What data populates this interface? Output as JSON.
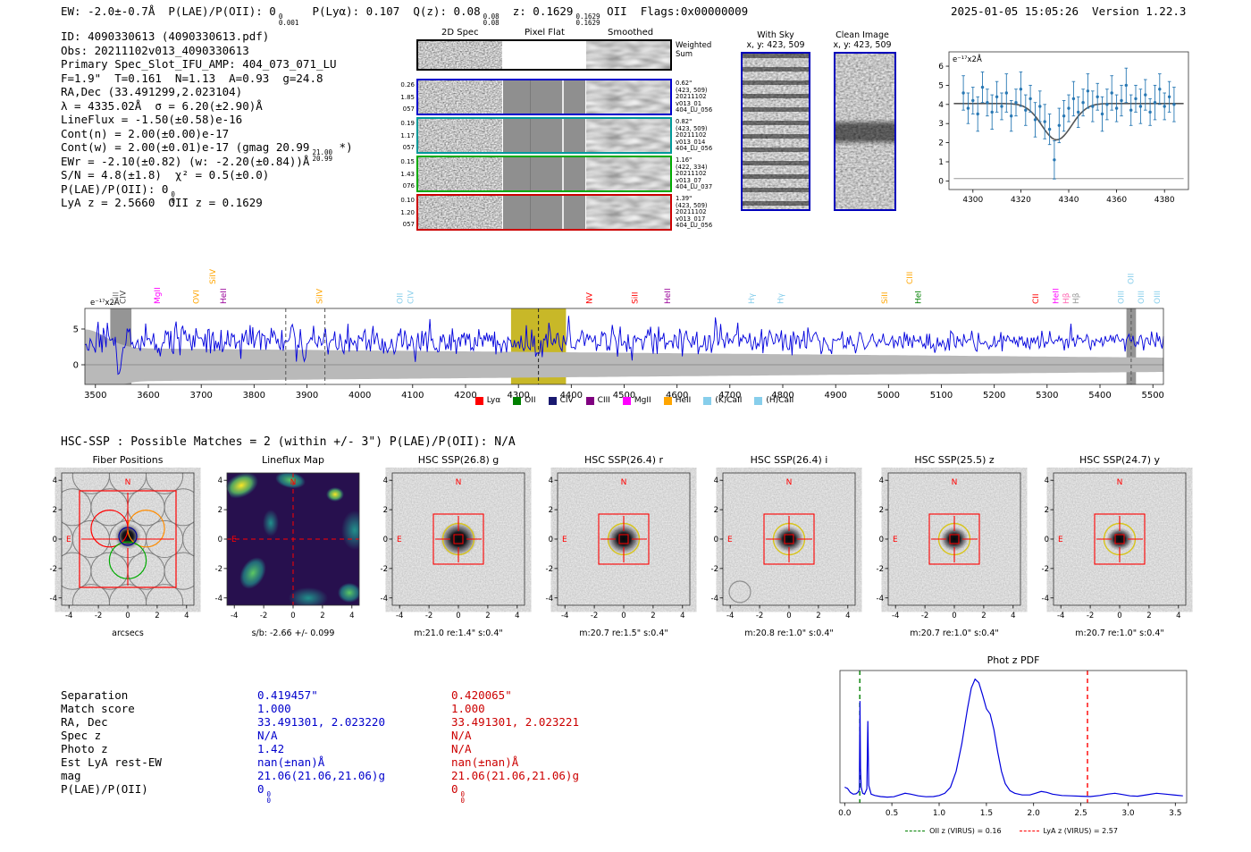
{
  "header": {
    "segments": [
      {
        "t": "EW: -2.0±-0.7Å  P(LAE)/P(OII): 0"
      },
      {
        "sup": "0",
        "sub": "0.001"
      },
      {
        "t": "  P(Lyα): 0.107  Q(z): 0.08"
      },
      {
        "sup": "0.08",
        "sub": "0.08"
      },
      {
        "t": "  z: 0.1629"
      },
      {
        "sup": "0.1629",
        "sub": "0.1629"
      },
      {
        "t": " OII  Flags:0x00000009"
      }
    ],
    "right": "2025-01-05 15:05:26  Version 1.22.3"
  },
  "info": {
    "lines": [
      [
        {
          "t": "ID: 4090330613 (4090330613.pdf)"
        }
      ],
      [
        {
          "t": "Obs: 20211102v013_4090330613"
        }
      ],
      [
        {
          "t": "Primary Spec_Slot_IFU_AMP: 404_073_071_LU"
        }
      ],
      [
        {
          "t": "F=1.9\"  T=0.161  N=1.13  A=0.93  g=24.8"
        }
      ],
      [
        {
          "t": "RA,Dec (33.491299,2.023104)"
        }
      ],
      [
        {
          "t": "λ = 4335.02Å  σ = 6.20(±2.90)Å"
        }
      ],
      [
        {
          "t": "LineFlux = -1.50(±0.58)e-16"
        }
      ],
      [
        {
          "t": "Cont(n) = 2.00(±0.00)e-17"
        }
      ],
      [
        {
          "t": "Cont(w) = 2.00(±0.01)e-17 (gmag 20.99"
        },
        {
          "sup": "21.00",
          "sub": "20.99"
        },
        {
          "t": " *)"
        }
      ],
      [
        {
          "t": "EWr = -2.10(±0.82) (w: -2.20(±0.84))Å"
        }
      ],
      [
        {
          "t": "S/N = 4.8(±1.8)  χ² = 0.5(±0.0)"
        }
      ],
      [
        {
          "t": "P(LAE)/P(OII): 0"
        },
        {
          "sup": "0",
          "sub": "0"
        }
      ],
      [
        {
          "t": "LyA z = 2.5660  OII z = 0.1629"
        }
      ]
    ]
  },
  "spec2d": {
    "col_titles": [
      "2D Spec",
      "Pixel Flat",
      "Smoothed"
    ],
    "rows": [
      {
        "border": "#000000",
        "left": [],
        "right": [
          "Weighted",
          "Sum"
        ]
      },
      {
        "border": "#0000cc",
        "left": [
          "0.26",
          "1.85",
          "057"
        ],
        "right": [
          "0.62\"",
          "(423, 509)",
          "20211102",
          "v013_01",
          "404_LU_056"
        ]
      },
      {
        "border": "#009999",
        "left": [
          "0.19",
          "1.17",
          "057"
        ],
        "right": [
          "0.82\"",
          "(423, 509)",
          "20211102",
          "v013_014",
          "404_LU_056"
        ]
      },
      {
        "border": "#00aa00",
        "left": [
          "0.15",
          "1.43",
          "076"
        ],
        "right": [
          "1.16\"",
          "(422, 334)",
          "20211102",
          "v013_07",
          "404_LU_037"
        ]
      },
      {
        "border": "#cc0000",
        "left": [
          "0.10",
          "1.20",
          "057"
        ],
        "right": [
          "1.39\"",
          "(423, 509)",
          "20211102",
          "v013_017",
          "404_LU_056"
        ]
      }
    ]
  },
  "sky_panels": {
    "with_sky": {
      "title": "With Sky",
      "coords": "x, y: 423, 509"
    },
    "clean": {
      "title": "Clean Image",
      "coords": "x, y: 423, 509"
    }
  },
  "matches_header": "HSC-SSP : Possible Matches = 2 (within +/- 3\")  P(LAE)/P(OII): N/A",
  "cutouts": {
    "tick_values": [
      -4,
      -2,
      0,
      2,
      4
    ],
    "compass": {
      "north": "N",
      "east": "E"
    },
    "panels": [
      {
        "title": "Fiber Positions",
        "caption": "arcsecs",
        "type": "fiber"
      },
      {
        "title": "Lineflux Map",
        "caption": "s/b: -2.66 +/- 0.099",
        "type": "lineflux"
      },
      {
        "title": "HSC SSP(26.8) g",
        "caption": "m:21.0 re:1.4\" s:0.4\"",
        "type": "image",
        "blob_r": 21
      },
      {
        "title": "HSC SSP(26.4) r",
        "caption": "m:20.7 re:1.5\" s:0.4\"",
        "type": "image",
        "blob_r": 19
      },
      {
        "title": "HSC SSP(26.4) i",
        "caption": "m:20.8 re:1.0\" s:0.4\"",
        "type": "image",
        "blob_r": 17,
        "extra_source": true
      },
      {
        "title": "HSC SSP(25.5) z",
        "caption": "m:20.7 re:1.0\" s:0.4\"",
        "type": "image",
        "blob_r": 16
      },
      {
        "title": "HSC SSP(24.7) y",
        "caption": "m:20.7 re:1.0\" s:0.4\"",
        "type": "image",
        "blob_r": 15
      }
    ]
  },
  "match_table": {
    "blue_color": "#0000cc",
    "red_color": "#cc0000",
    "rows": [
      {
        "label": "Separation",
        "blue": [
          {
            "t": "0.419457\""
          }
        ],
        "red": [
          {
            "t": "0.420065\""
          }
        ]
      },
      {
        "label": "Match score",
        "blue": [
          {
            "t": "1.000"
          }
        ],
        "red": [
          {
            "t": "1.000"
          }
        ]
      },
      {
        "label": "RA, Dec",
        "blue": [
          {
            "t": "33.491301, 2.023220"
          }
        ],
        "red": [
          {
            "t": "33.491301, 2.023221"
          }
        ]
      },
      {
        "label": "Spec z",
        "blue": [
          {
            "t": "N/A"
          }
        ],
        "red": [
          {
            "t": "N/A"
          }
        ]
      },
      {
        "label": "Photo z",
        "blue": [
          {
            "t": "1.42"
          }
        ],
        "red": [
          {
            "t": "N/A"
          }
        ]
      },
      {
        "label": "Est LyA rest-EW",
        "blue": [
          {
            "t": "nan(±nan)Å"
          }
        ],
        "red": [
          {
            "t": "nan(±nan)Å"
          }
        ]
      },
      {
        "label": "mag",
        "blue": [
          {
            "t": "21.06(21.06,21.06)g"
          }
        ],
        "red": [
          {
            "t": "21.06(21.06,21.06)g"
          }
        ]
      },
      {
        "label": "P(LAE)/P(OII)",
        "blue": [
          {
            "t": "0"
          },
          {
            "sup": "0",
            "sub": "0"
          }
        ],
        "red": [
          {
            "t": "0"
          },
          {
            "sup": "0",
            "sub": "0"
          }
        ]
      }
    ]
  },
  "chart_data": [
    {
      "name": "line_fit_inset",
      "type": "scatter",
      "note": "e⁻¹⁷x2Å",
      "xlim": [
        4290,
        4390
      ],
      "ylim": [
        -0.45,
        6.75
      ],
      "xticks": [
        4300,
        4320,
        4340,
        4360,
        4380
      ],
      "yticks": [
        0,
        1,
        2,
        3,
        4,
        5,
        6
      ],
      "point_color": "#2878b4",
      "fit_color": "#555555",
      "zero_line_y": 0.12,
      "fit": {
        "continuum": 4.05,
        "center": 4335,
        "sigma": 6.2,
        "depth": 1.9
      },
      "points": [
        [
          4296,
          4.6,
          0.9
        ],
        [
          4298,
          3.8,
          0.8
        ],
        [
          4300,
          4.2,
          0.7
        ],
        [
          4302,
          3.5,
          0.9
        ],
        [
          4304,
          4.9,
          0.8
        ],
        [
          4306,
          4.1,
          0.7
        ],
        [
          4308,
          3.6,
          0.9
        ],
        [
          4310,
          4.4,
          0.8
        ],
        [
          4312,
          3.9,
          0.7
        ],
        [
          4314,
          4.6,
          1.0
        ],
        [
          4316,
          3.4,
          0.8
        ],
        [
          4318,
          4.1,
          0.7
        ],
        [
          4320,
          4.8,
          0.9
        ],
        [
          4322,
          3.7,
          0.8
        ],
        [
          4324,
          4.3,
          0.7
        ],
        [
          4326,
          3.2,
          0.9
        ],
        [
          4328,
          3.9,
          0.8
        ],
        [
          4330,
          3.1,
          0.9
        ],
        [
          4332,
          2.7,
          0.8
        ],
        [
          4334,
          1.1,
          1.0
        ],
        [
          4336,
          2.9,
          0.9
        ],
        [
          4338,
          3.4,
          0.8
        ],
        [
          4340,
          3.8,
          0.7
        ],
        [
          4342,
          4.3,
          0.9
        ],
        [
          4344,
          3.6,
          0.8
        ],
        [
          4346,
          4.1,
          0.7
        ],
        [
          4348,
          4.7,
          0.9
        ],
        [
          4350,
          3.9,
          0.8
        ],
        [
          4352,
          4.4,
          0.7
        ],
        [
          4354,
          3.5,
          0.9
        ],
        [
          4356,
          4.0,
          0.8
        ],
        [
          4358,
          4.6,
          0.9
        ],
        [
          4360,
          3.8,
          0.7
        ],
        [
          4362,
          4.2,
          0.8
        ],
        [
          4364,
          5.0,
          0.9
        ],
        [
          4366,
          3.7,
          0.8
        ],
        [
          4368,
          4.3,
          0.7
        ],
        [
          4370,
          3.9,
          0.9
        ],
        [
          4372,
          4.5,
          0.8
        ],
        [
          4374,
          3.6,
          0.7
        ],
        [
          4376,
          4.1,
          0.9
        ],
        [
          4378,
          4.8,
          0.8
        ],
        [
          4380,
          3.9,
          0.7
        ],
        [
          4382,
          4.4,
          0.8
        ],
        [
          4384,
          4.0,
          0.9
        ]
      ]
    },
    {
      "name": "full_spectrum",
      "type": "line",
      "note": "e⁻¹⁷x2Å",
      "xlim": [
        3480,
        5520
      ],
      "xticks": [
        3500,
        3600,
        3700,
        3800,
        3900,
        4000,
        4100,
        4200,
        4300,
        4400,
        4500,
        4600,
        4700,
        4800,
        4900,
        5000,
        5100,
        5200,
        5300,
        5400,
        5500
      ],
      "yticks": [
        0,
        5
      ],
      "line_color": "#0000dd",
      "noise_model": {
        "baseline": 3.3,
        "amp_blue": 1.55,
        "amp_red": 0.8,
        "seed": 7,
        "absorption": {
          "center": 4336,
          "sigma": 6.2,
          "depth": 1.6
        },
        "deep_dips": [
          {
            "center": 3547,
            "sigma": 7,
            "depth": 7.2
          },
          {
            "center": 3622,
            "sigma": 5,
            "depth": 3.3
          }
        ]
      },
      "error_band": {
        "halfwidth_blue": 2.35,
        "halfwidth_red": 1.0,
        "edge_extra": 2.6
      },
      "highlight_band": {
        "x0": 4286,
        "x1": 4390,
        "color": "#c5b41c"
      },
      "gray_bands": [
        {
          "x0": 3528,
          "x1": 3568
        },
        {
          "x0": 5450,
          "x1": 5468
        }
      ],
      "dashed_lines": [
        {
          "x": 3860,
          "color": "#555555"
        },
        {
          "x": 3934,
          "color": "#555555"
        },
        {
          "x": 4338,
          "color": "#222222"
        },
        {
          "x": 5459,
          "color": "#555555"
        }
      ],
      "line_labels": [
        {
          "wl": 3538,
          "text": "SiII",
          "color": "#777777"
        },
        {
          "wl": 3552,
          "text": "CIV",
          "color": "#444444"
        },
        {
          "wl": 3617,
          "text": "MgII",
          "color": "#ff00ff"
        },
        {
          "wl": 3690,
          "text": "OVI",
          "color": "#ffa500"
        },
        {
          "wl": 3722,
          "text": "SiIV",
          "color": "#ffa500",
          "raise": 22
        },
        {
          "wl": 3742,
          "text": "HeII",
          "color": "#990099"
        },
        {
          "wl": 3924,
          "text": "SiIV",
          "color": "#ffa500"
        },
        {
          "wl": 4076,
          "text": "OII",
          "color": "#87ceeb"
        },
        {
          "wl": 4096,
          "text": "CIV",
          "color": "#87ceeb"
        },
        {
          "wl": 4434,
          "text": "NV",
          "color": "#ff0000"
        },
        {
          "wl": 4520,
          "text": "SiII",
          "color": "#ff0000"
        },
        {
          "wl": 4582,
          "text": "HeII",
          "color": "#990099"
        },
        {
          "wl": 4741,
          "text": "Hγ",
          "color": "#87ceeb"
        },
        {
          "wl": 4796,
          "text": "Hγ",
          "color": "#87ceeb"
        },
        {
          "wl": 4993,
          "text": "SiII",
          "color": "#ffa500"
        },
        {
          "wl": 5040,
          "text": "CIII",
          "color": "#ffa500",
          "raise": 22
        },
        {
          "wl": 5056,
          "text": "HeI",
          "color": "#008000"
        },
        {
          "wl": 5278,
          "text": "CII",
          "color": "#ff0000"
        },
        {
          "wl": 5316,
          "text": "HeII",
          "color": "#ff00ff"
        },
        {
          "wl": 5336,
          "text": "Hβ",
          "color": "#ff69b4"
        },
        {
          "wl": 5354,
          "text": "Hβ",
          "color": "#999999"
        },
        {
          "wl": 5440,
          "text": "OIII",
          "color": "#87ceeb"
        },
        {
          "wl": 5458,
          "text": "OII",
          "color": "#87ceeb",
          "raise": 22
        },
        {
          "wl": 5478,
          "text": "OIII",
          "color": "#87ceeb"
        },
        {
          "wl": 5508,
          "text": "OIII",
          "color": "#87ceeb"
        }
      ],
      "legend": [
        {
          "label": "Lyα",
          "color": "#ff0000"
        },
        {
          "label": "OII",
          "color": "#008000"
        },
        {
          "label": "CIV",
          "color": "#191970"
        },
        {
          "label": "CIII",
          "color": "#800080"
        },
        {
          "label": "MgII",
          "color": "#ff00ff"
        },
        {
          "label": "HeII",
          "color": "#ffa500"
        },
        {
          "label": "(K)CaII",
          "color": "#87ceeb"
        },
        {
          "label": "(H)CaII",
          "color": "#87ceeb"
        }
      ]
    },
    {
      "name": "phot_z_pdf",
      "type": "line",
      "title": "Phot z PDF",
      "xlim": [
        -0.05,
        3.62
      ],
      "ylim": [
        0,
        7.6
      ],
      "xticks": [
        0.0,
        0.5,
        1.0,
        1.5,
        2.0,
        2.5,
        3.0,
        3.5
      ],
      "curve_color": "#0000dd",
      "curve": [
        [
          0.0,
          0.9
        ],
        [
          0.03,
          0.82
        ],
        [
          0.06,
          0.6
        ],
        [
          0.09,
          0.5
        ],
        [
          0.12,
          0.52
        ],
        [
          0.14,
          0.6
        ],
        [
          0.155,
          0.75
        ],
        [
          0.162,
          5.85
        ],
        [
          0.168,
          2.0
        ],
        [
          0.175,
          0.9
        ],
        [
          0.19,
          0.55
        ],
        [
          0.21,
          0.5
        ],
        [
          0.235,
          0.8
        ],
        [
          0.245,
          4.7
        ],
        [
          0.255,
          1.0
        ],
        [
          0.28,
          0.5
        ],
        [
          0.32,
          0.42
        ],
        [
          0.38,
          0.36
        ],
        [
          0.45,
          0.33
        ],
        [
          0.52,
          0.35
        ],
        [
          0.58,
          0.45
        ],
        [
          0.64,
          0.55
        ],
        [
          0.7,
          0.5
        ],
        [
          0.78,
          0.4
        ],
        [
          0.86,
          0.35
        ],
        [
          0.94,
          0.36
        ],
        [
          1.0,
          0.42
        ],
        [
          1.06,
          0.55
        ],
        [
          1.12,
          0.9
        ],
        [
          1.18,
          1.8
        ],
        [
          1.24,
          3.4
        ],
        [
          1.3,
          5.4
        ],
        [
          1.34,
          6.6
        ],
        [
          1.38,
          7.1
        ],
        [
          1.42,
          6.9
        ],
        [
          1.46,
          6.2
        ],
        [
          1.5,
          5.4
        ],
        [
          1.54,
          5.1
        ],
        [
          1.58,
          4.2
        ],
        [
          1.62,
          2.9
        ],
        [
          1.66,
          1.8
        ],
        [
          1.7,
          1.1
        ],
        [
          1.75,
          0.7
        ],
        [
          1.8,
          0.55
        ],
        [
          1.88,
          0.45
        ],
        [
          1.96,
          0.45
        ],
        [
          2.02,
          0.55
        ],
        [
          2.08,
          0.65
        ],
        [
          2.14,
          0.6
        ],
        [
          2.2,
          0.5
        ],
        [
          2.3,
          0.42
        ],
        [
          2.4,
          0.4
        ],
        [
          2.5,
          0.38
        ],
        [
          2.6,
          0.36
        ],
        [
          2.7,
          0.42
        ],
        [
          2.78,
          0.5
        ],
        [
          2.86,
          0.55
        ],
        [
          2.94,
          0.48
        ],
        [
          3.02,
          0.4
        ],
        [
          3.1,
          0.38
        ],
        [
          3.2,
          0.46
        ],
        [
          3.3,
          0.55
        ],
        [
          3.4,
          0.5
        ],
        [
          3.5,
          0.44
        ],
        [
          3.58,
          0.4
        ]
      ],
      "vlines": [
        {
          "x": 0.16,
          "color": "#008000",
          "style": "dashed",
          "label": "OII z (VIRUS) = 0.16"
        },
        {
          "x": 2.57,
          "color": "#ff0000",
          "style": "dashed",
          "label": "LyA z (VIRUS) = 2.57"
        }
      ]
    }
  ]
}
